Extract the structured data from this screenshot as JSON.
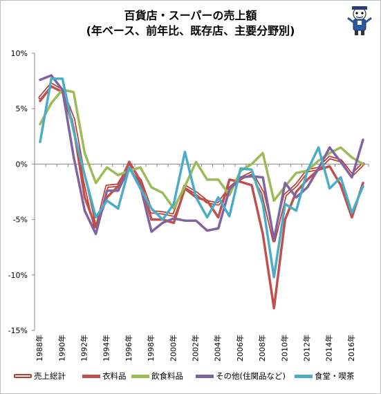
{
  "title_line1": "百貨店・スーパーの売上額",
  "title_line2": "(年ベース、前年比、既存店、主要分野別)",
  "chart_data": {
    "type": "line",
    "title": "百貨店・スーパーの売上額 (年ベース、前年比、既存店、主要分野別)",
    "xlabel": "",
    "ylabel": "",
    "x": [
      1988,
      1989,
      1990,
      1991,
      1992,
      1993,
      1994,
      1995,
      1996,
      1997,
      1998,
      1999,
      2000,
      2001,
      2002,
      2003,
      2004,
      2005,
      2006,
      2007,
      2008,
      2009,
      2010,
      2011,
      2012,
      2013,
      2014,
      2015,
      2016,
      2017
    ],
    "x_tick_labels": [
      "1988年",
      "1990年",
      "1992年",
      "1994年",
      "1996年",
      "1998年",
      "2000年",
      "2002年",
      "2004年",
      "2006年",
      "2008年",
      "2010年",
      "2012年",
      "2014年",
      "2016年"
    ],
    "y_tick_labels": [
      "10%",
      "5%",
      "0%",
      "-5%",
      "-10%",
      "-15%"
    ],
    "ylim": [
      -15,
      10
    ],
    "grid": false,
    "legend_position": "bottom",
    "series": [
      {
        "name": "売上総計",
        "color": "#c0392b",
        "style": "double",
        "values": [
          6.0,
          7.2,
          6.6,
          4.0,
          -1.5,
          -6.0,
          -2.0,
          -1.9,
          -0.2,
          -1.5,
          -4.3,
          -4.4,
          -4.6,
          -2.0,
          -2.6,
          -3.4,
          -3.6,
          -2.2,
          -1.3,
          -0.8,
          -2.6,
          -6.9,
          -2.8,
          -1.9,
          -0.6,
          -0.4,
          0.6,
          0.3,
          -1.0,
          0.0
        ]
      },
      {
        "name": "衣料品",
        "color": "#c0504d",
        "style": "solid",
        "values": [
          5.7,
          7.0,
          6.5,
          3.3,
          -3.0,
          -5.7,
          -3.0,
          -2.0,
          0.2,
          -1.5,
          -5.0,
          -5.0,
          -5.3,
          -2.2,
          -3.0,
          -3.3,
          -4.8,
          -1.4,
          -1.6,
          -1.9,
          -6.3,
          -13.0,
          -5.0,
          -2.5,
          -1.4,
          -0.5,
          -0.2,
          -1.9,
          -4.8,
          -1.7
        ]
      },
      {
        "name": "飲食料品",
        "color": "#9bbb59",
        "style": "solid",
        "values": [
          3.6,
          5.5,
          6.7,
          6.5,
          1.0,
          -1.7,
          -0.3,
          -1.0,
          -0.6,
          -0.3,
          -2.1,
          -2.6,
          -4.0,
          -2.0,
          0.2,
          -1.4,
          -1.4,
          -2.8,
          -0.6,
          0.0,
          1.0,
          -3.3,
          -2.0,
          -0.8,
          -0.6,
          0.3,
          1.0,
          1.5,
          0.6,
          0.0
        ]
      },
      {
        "name": "その他(住関品など)",
        "color": "#8064a2",
        "style": "solid",
        "values": [
          7.6,
          8.0,
          6.7,
          0.7,
          -4.2,
          -6.3,
          -2.4,
          -2.4,
          -0.3,
          -2.0,
          -6.1,
          -5.3,
          -4.9,
          -5.1,
          -5.1,
          -6.0,
          -5.8,
          -2.3,
          -1.2,
          -1.1,
          -1.2,
          -6.8,
          -1.7,
          -3.0,
          -2.1,
          -0.4,
          1.5,
          0.2,
          -1.2,
          2.2
        ]
      },
      {
        "name": "食堂・喫茶",
        "color": "#4bacc6",
        "style": "solid",
        "values": [
          2.0,
          7.7,
          7.7,
          3.0,
          -1.0,
          -4.8,
          -3.3,
          -4.0,
          -0.3,
          -2.2,
          -4.0,
          -5.0,
          -3.6,
          1.1,
          -3.0,
          -4.8,
          -3.0,
          -4.7,
          -0.4,
          -0.5,
          -3.6,
          -10.2,
          -3.6,
          -4.2,
          -0.6,
          1.5,
          -2.2,
          -1.2,
          -4.4,
          -2.0
        ]
      }
    ]
  }
}
